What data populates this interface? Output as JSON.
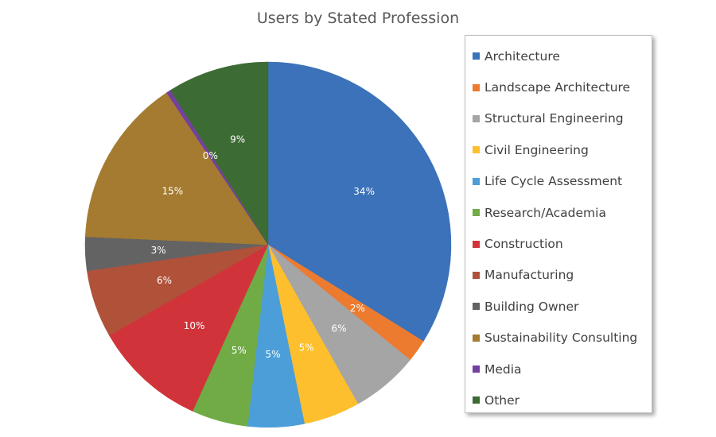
{
  "chart_data": {
    "type": "pie",
    "title": "Users by Stated Profession",
    "legend_position": "right",
    "slices": [
      {
        "label": "Architecture",
        "value": 34,
        "display": "34%",
        "color": "#3B72B9",
        "label_color": "#ffffff"
      },
      {
        "label": "Landscape Architecture",
        "value": 2,
        "display": "2%",
        "color": "#EC7B30",
        "label_color": "#ffffff"
      },
      {
        "label": "Structural Engineering",
        "value": 6,
        "display": "6%",
        "color": "#A5A5A5",
        "label_color": "#ffffff"
      },
      {
        "label": "Civil Engineering",
        "value": 5,
        "display": "5%",
        "color": "#FDBF2D",
        "label_color": "#ffffff"
      },
      {
        "label": "Life Cycle Assessment",
        "value": 5,
        "display": "5%",
        "color": "#4C9ED9",
        "label_color": "#ffffff"
      },
      {
        "label": "Research/Academia",
        "value": 5,
        "display": "5%",
        "color": "#70AB46",
        "label_color": "#ffffff"
      },
      {
        "label": "Construction",
        "value": 10,
        "display": "10%",
        "color": "#D0343A",
        "label_color": "#ffffff"
      },
      {
        "label": "Manufacturing",
        "value": 6,
        "display": "6%",
        "color": "#B0513A",
        "label_color": "#ffffff"
      },
      {
        "label": "Building Owner",
        "value": 3,
        "display": "3%",
        "color": "#636363",
        "label_color": "#ffffff"
      },
      {
        "label": "Sustainability Consulting",
        "value": 15,
        "display": "15%",
        "color": "#A47B30",
        "label_color": "#ffffff"
      },
      {
        "label": "Media",
        "value": 0.4,
        "display": "0%",
        "color": "#7440A0",
        "label_color": "#ffffff"
      },
      {
        "label": "Other",
        "value": 9,
        "display": "9%",
        "color": "#3D6B34",
        "label_color": "#ffffff"
      }
    ]
  }
}
